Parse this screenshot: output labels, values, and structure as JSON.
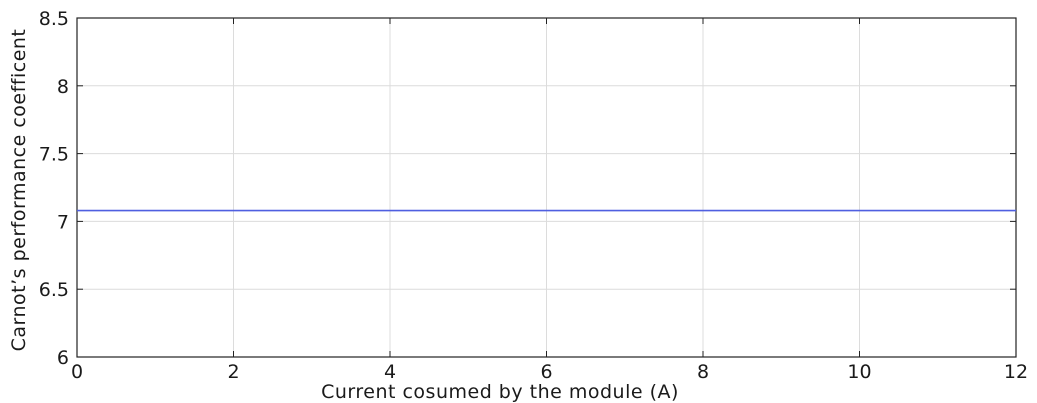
{
  "chart_data": {
    "type": "line",
    "title": "",
    "xlabel": "Current cosumed by the module (A)",
    "ylabel": "Carnot’s performance coefficent",
    "xlim": [
      0,
      12
    ],
    "ylim": [
      6,
      8.5
    ],
    "xticks": [
      0,
      2,
      4,
      6,
      8,
      10,
      12
    ],
    "yticks": [
      6,
      6.5,
      7,
      7.5,
      8,
      8.5
    ],
    "xtick_labels": [
      "0",
      "2",
      "4",
      "6",
      "8",
      "10",
      "12"
    ],
    "ytick_labels": [
      "6",
      "6.5",
      "7",
      "7.5",
      "8",
      "8.5"
    ],
    "grid": true,
    "legend": false,
    "series": [
      {
        "color": "#4f5fe0",
        "x": [
          0,
          2,
          4,
          6,
          8,
          10,
          12
        ],
        "y": [
          7.08,
          7.08,
          7.08,
          7.08,
          7.08,
          7.08,
          7.08
        ]
      }
    ]
  }
}
